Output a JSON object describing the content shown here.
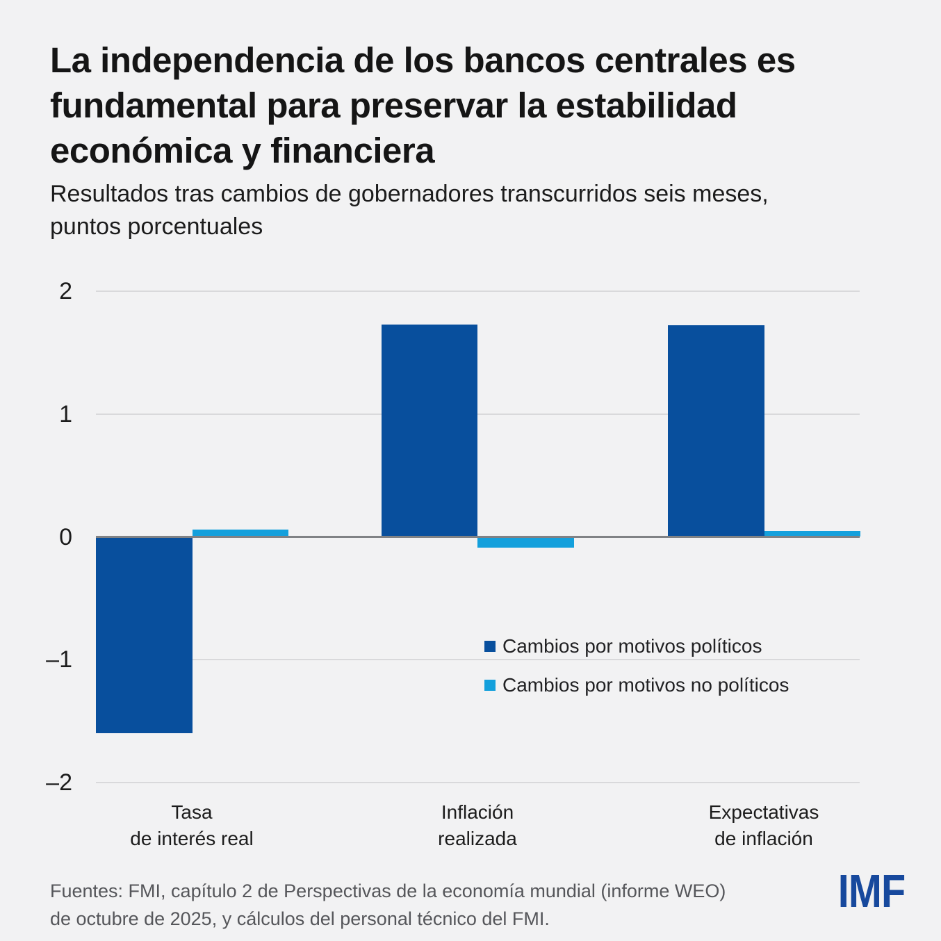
{
  "header": {
    "title_lines": [
      "La independencia de los bancos centrales es",
      "fundamental para preservar la estabilidad",
      "económica y financiera"
    ],
    "subtitle_lines": [
      "Resultados tras cambios de gobernadores transcurridos seis meses,",
      "puntos porcentuales"
    ]
  },
  "chart_data": {
    "type": "bar",
    "title": "La independencia de los bancos centrales es fundamental para preservar la estabilidad económica y financiera",
    "subtitle": "Resultados tras cambios de gobernadores transcurridos seis meses, puntos porcentuales",
    "categories": [
      "Tasa de interés real",
      "Inflación realizada",
      "Expectativas de inflación"
    ],
    "category_label_lines": [
      [
        "Tasa",
        "de interés real"
      ],
      [
        "Inflación",
        "realizada"
      ],
      [
        "Expectativas",
        "de inflación"
      ]
    ],
    "series": [
      {
        "name": "Cambios por motivos políticos",
        "color": "#084F9D",
        "values": [
          -1.6,
          1.73,
          1.72
        ]
      },
      {
        "name": "Cambios por motivos no políticos",
        "color": "#14A0DC",
        "values": [
          0.06,
          -0.09,
          0.05
        ]
      }
    ],
    "ylabel": "puntos porcentuales",
    "ylim": [
      -2,
      2
    ],
    "yticks": [
      2,
      1,
      0,
      -1,
      -2
    ],
    "ytick_labels": [
      "2",
      "1",
      "0",
      "–1",
      "–2"
    ],
    "grid": true,
    "legend_position": "inside-center-middle"
  },
  "footer": {
    "source_lines": [
      "Fuentes: FMI, capítulo 2 de Perspectivas de la economía mundial (informe WEO)",
      "de octubre de 2025, y cálculos del personal técnico del FMI."
    ],
    "logo_text": "IMF"
  },
  "colors": {
    "background": "#F2F2F3",
    "dark_series": "#084F9D",
    "light_series": "#14A0DC",
    "grid_line": "#D9D9DB",
    "zero_line": "#808285",
    "title_text": "#151515",
    "footer_text": "#55565A",
    "logo_blue": "#17499D"
  }
}
